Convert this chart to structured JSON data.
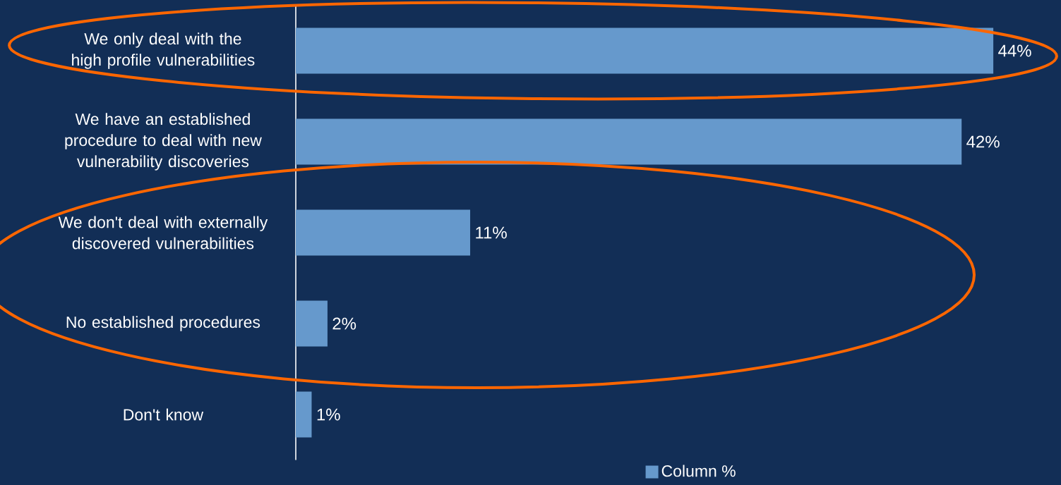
{
  "chart_data": {
    "type": "bar",
    "orientation": "horizontal",
    "categories": [
      "We only deal with the high profile vulnerabilities",
      "We have an established procedure to deal with new vulnerability discoveries",
      "We don't deal with externally discovered vulnerabilities",
      "No established procedures",
      "Don't know"
    ],
    "series": [
      {
        "name": "Column %",
        "color": "#6699cc",
        "values": [
          44,
          42,
          11,
          2,
          1
        ],
        "value_labels": [
          "44%",
          "42%",
          "11%",
          "2%",
          "1%"
        ]
      }
    ],
    "legend": "bottom",
    "tick_labels": "y"
  }
}
